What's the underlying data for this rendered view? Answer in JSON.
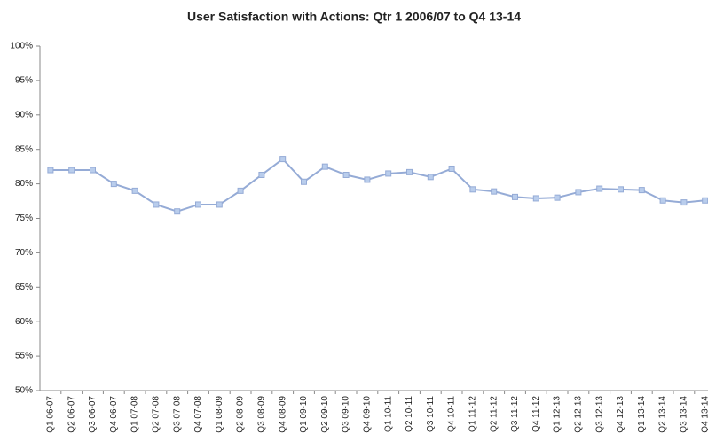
{
  "chart_data": {
    "type": "line",
    "title": "User Satisfaction with Actions: Qtr 1 2006/07 to Q4 13-14",
    "categories": [
      "Q1 06-07",
      "Q2 06-07",
      "Q3 06-07",
      "Q4 06-07",
      "Q1 07-08",
      "Q2 07-08",
      "Q3 07-08",
      "Q4 07-08",
      "Q1 08-09",
      "Q2 08-09",
      "Q3 08-09",
      "Q4 08-09",
      "Q1 09-10",
      "Q2 09-10",
      "Q3 09-10",
      "Q4 09-10",
      "Q1 10-11",
      "Q2 10-11",
      "Q3 10-11",
      "Q4 10-11",
      "Q1 11-12",
      "Q2 11-12",
      "Q3 11-12",
      "Q4 11-12",
      "Q1 12-13",
      "Q2 12-13",
      "Q3 12-13",
      "Q4 12-13",
      "Q1 13-14",
      "Q2 13-14",
      "Q3 13-14",
      "Q4 13-14"
    ],
    "values": [
      82,
      82,
      82,
      80,
      79,
      77,
      76,
      77,
      77,
      79,
      81.3,
      83.6,
      80.3,
      82.5,
      81.3,
      80.6,
      81.5,
      81.7,
      81.0,
      82.2,
      79.2,
      78.9,
      78.1,
      77.9,
      78.0,
      78.8,
      79.3,
      79.2,
      79.1,
      77.6,
      77.3,
      77.6
    ],
    "color": "#95abd6",
    "marker_color": "#b9cdec",
    "ylim": [
      50,
      100
    ],
    "yticks": [
      {
        "value": 50,
        "label": "50%"
      },
      {
        "value": 55,
        "label": "55%"
      },
      {
        "value": 60,
        "label": "60%"
      },
      {
        "value": 65,
        "label": "65%"
      },
      {
        "value": 70,
        "label": "70%"
      },
      {
        "value": 75,
        "label": "75%"
      },
      {
        "value": 80,
        "label": "80%"
      },
      {
        "value": 85,
        "label": "85%"
      },
      {
        "value": 90,
        "label": "90%"
      },
      {
        "value": 95,
        "label": "95%"
      },
      {
        "value": 100,
        "label": "100%"
      }
    ],
    "grid": false
  }
}
